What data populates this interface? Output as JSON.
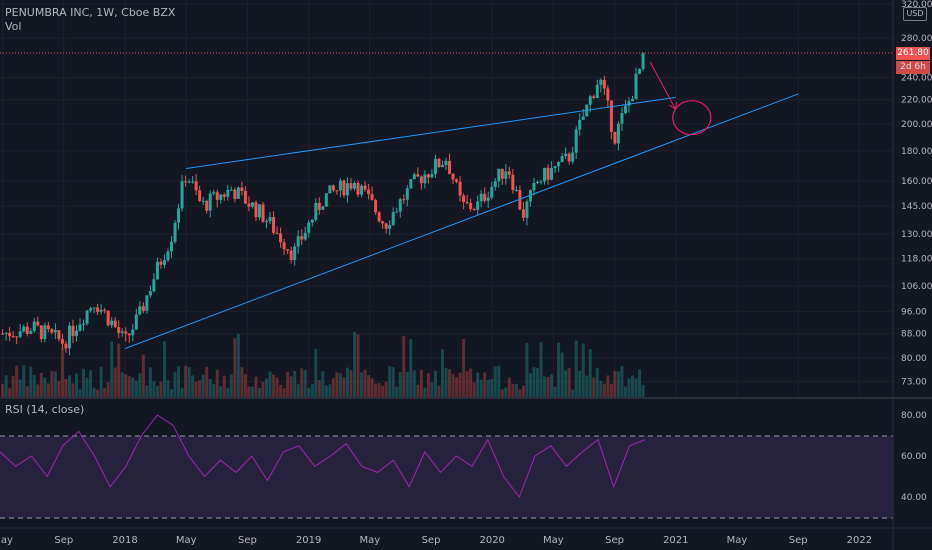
{
  "header": {
    "symbol_line": "PENUMBRA INC, 1W, Cboe BZX",
    "vol_label": "Vol",
    "rsi_label": "RSI (14, close)"
  },
  "currency": "USD",
  "price_tags": {
    "last_price": "261.80",
    "countdown": "2d 6h"
  },
  "colors": {
    "background": "#131722",
    "up": "#26a69a",
    "down": "#ef5350",
    "trendline": "#2196f3",
    "rsi_line": "#9c27b0",
    "annotation": "#e91e63",
    "text": "#b2b5be"
  },
  "chart_data": [
    {
      "type": "candlestick",
      "title": "PENUMBRA INC, 1W, Cboe BZX",
      "y_scale": "log",
      "yticks": [
        "320.00",
        "280.00",
        "261.80",
        "240.00",
        "220.00",
        "200.00",
        "180.00",
        "160.00",
        "145.00",
        "130.00",
        "118.00",
        "106.00",
        "96.00",
        "88.00",
        "80.00",
        "73.00"
      ],
      "xticks": [
        "May",
        "Sep",
        "2018",
        "May",
        "Sep",
        "2019",
        "May",
        "Sep",
        "2020",
        "May",
        "Sep",
        "2021",
        "May",
        "Sep",
        "2022"
      ],
      "ylim": [
        70,
        322
      ],
      "last_price": 261.8,
      "approx_closes": [
        {
          "date": "2017-05",
          "close": 88
        },
        {
          "date": "2017-07",
          "close": 90
        },
        {
          "date": "2017-09",
          "close": 85
        },
        {
          "date": "2017-11",
          "close": 100
        },
        {
          "date": "2017-12",
          "close": 93
        },
        {
          "date": "2018-01",
          "close": 85
        },
        {
          "date": "2018-02",
          "close": 95
        },
        {
          "date": "2018-04",
          "close": 128
        },
        {
          "date": "2018-05",
          "close": 165
        },
        {
          "date": "2018-06",
          "close": 145
        },
        {
          "date": "2018-08",
          "close": 155
        },
        {
          "date": "2018-10",
          "close": 140
        },
        {
          "date": "2018-12",
          "close": 120
        },
        {
          "date": "2019-02",
          "close": 150
        },
        {
          "date": "2019-04",
          "close": 160
        },
        {
          "date": "2019-06",
          "close": 135
        },
        {
          "date": "2019-08",
          "close": 160
        },
        {
          "date": "2019-10",
          "close": 175
        },
        {
          "date": "2019-11",
          "close": 145
        },
        {
          "date": "2019-12",
          "close": 145
        },
        {
          "date": "2020-02",
          "close": 170
        },
        {
          "date": "2020-03",
          "close": 140
        },
        {
          "date": "2020-04",
          "close": 160
        },
        {
          "date": "2020-06",
          "close": 175
        },
        {
          "date": "2020-08",
          "close": 240
        },
        {
          "date": "2020-09",
          "close": 190
        },
        {
          "date": "2020-10",
          "close": 220
        },
        {
          "date": "2020-11",
          "close": 261.8
        }
      ],
      "volume_panel": {
        "label": "Vol",
        "values": []
      },
      "trendlines": [
        {
          "name": "upper",
          "from": {
            "date": "2018-05",
            "price": 168
          },
          "to": {
            "date": "2021-01",
            "price": 222
          }
        },
        {
          "name": "lower",
          "from": {
            "date": "2018-01",
            "price": 83
          },
          "to": {
            "date": "2021-09",
            "price": 225
          }
        }
      ],
      "grid": true
    },
    {
      "type": "line",
      "title": "RSI (14, close)",
      "yticks": [
        "80.00",
        "60.00",
        "40.00"
      ],
      "ylim": [
        25,
        85
      ],
      "band": [
        30,
        70
      ],
      "series": [
        {
          "values": [
            62,
            55,
            60,
            50,
            65,
            72,
            60,
            45,
            55,
            70,
            80,
            75,
            60,
            50,
            58,
            52,
            60,
            48,
            62,
            65,
            55,
            60,
            66,
            55,
            52,
            58,
            45,
            62,
            52,
            60,
            55,
            68,
            50,
            40,
            60,
            65,
            55,
            62,
            68,
            45,
            65,
            68
          ]
        }
      ]
    }
  ]
}
